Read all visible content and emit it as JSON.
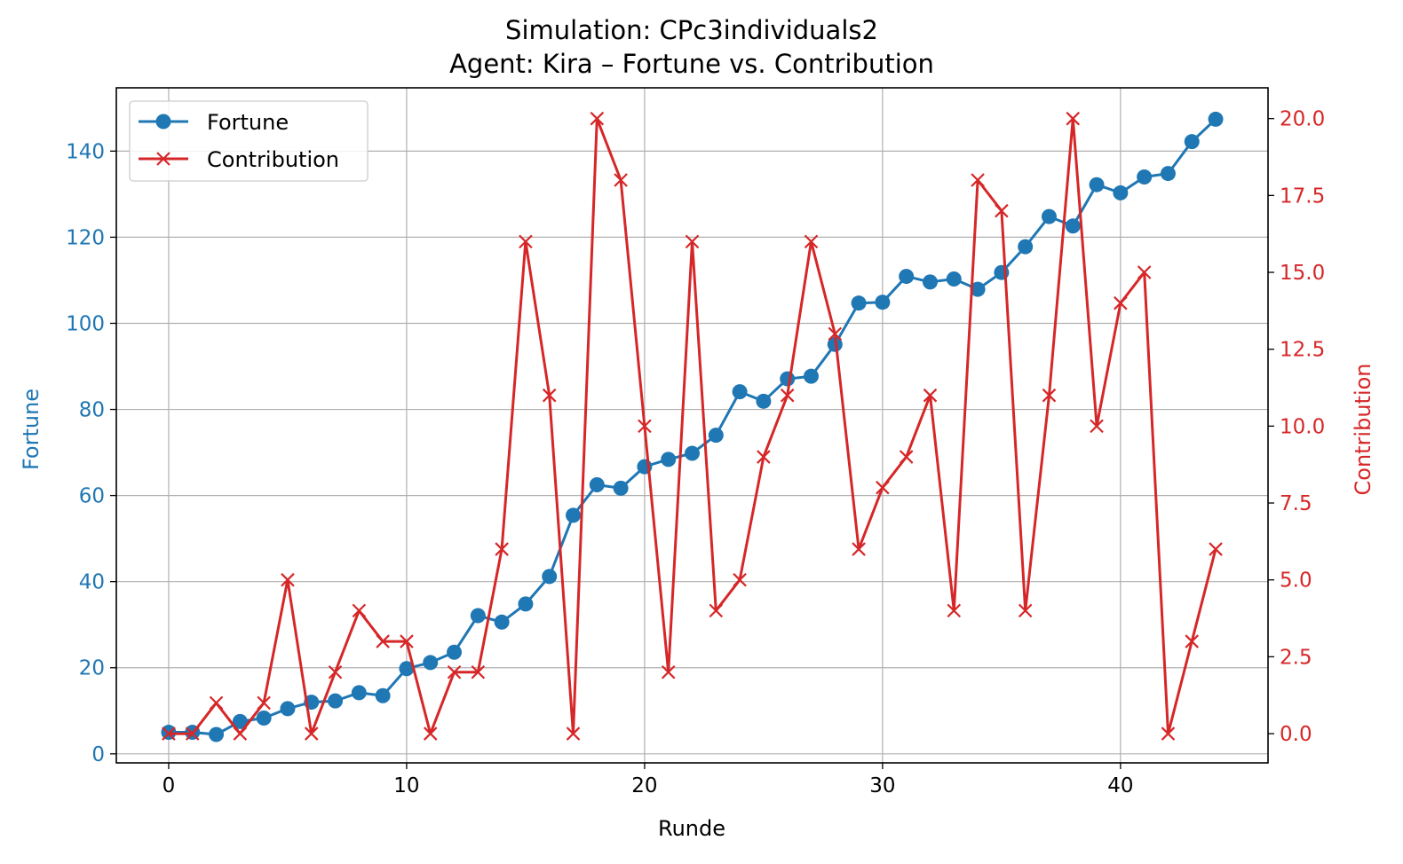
{
  "chart_data": {
    "type": "line",
    "title_line1": "Simulation: CPc3individuals2",
    "title_line2": "Agent: Kira – Fortune vs. Contribution",
    "xlabel": "Runde",
    "ylabel_left": "Fortune",
    "ylabel_right": "Contribution",
    "xlim": [
      -2.2,
      46.2
    ],
    "ylim_left": [
      -2.1,
      154.7
    ],
    "ylim_right": [
      -0.95,
      21.0
    ],
    "x_ticks": [
      "0",
      "10",
      "20",
      "30",
      "40"
    ],
    "y_left_ticks": [
      "0",
      "20",
      "40",
      "60",
      "80",
      "100",
      "120",
      "140"
    ],
    "y_right_ticks": [
      "0.0",
      "2.5",
      "5.0",
      "7.5",
      "10.0",
      "12.5",
      "15.0",
      "17.5",
      "20.0"
    ],
    "grid": true,
    "legend_position": "upper-left",
    "colors": {
      "fortune": "#1f77b4",
      "contribution": "#d62728"
    },
    "x": [
      0,
      1,
      2,
      3,
      4,
      5,
      6,
      7,
      8,
      9,
      10,
      11,
      12,
      13,
      14,
      15,
      16,
      17,
      18,
      19,
      20,
      21,
      22,
      23,
      24,
      25,
      26,
      27,
      28,
      29,
      30,
      31,
      32,
      33,
      34,
      35,
      36,
      37,
      38,
      39,
      40,
      41,
      42,
      43,
      44
    ],
    "series": [
      {
        "name": "Fortune",
        "axis": "left",
        "marker": "circle",
        "values": [
          5,
          5,
          4.5,
          7.5,
          8.3,
          10.5,
          12,
          12.3,
          14.2,
          13.5,
          19.8,
          21.2,
          23.6,
          32.1,
          30.6,
          34.8,
          41.2,
          55.4,
          62.5,
          61.7,
          66.7,
          68.4,
          69.8,
          74,
          84.1,
          81.9,
          87.1,
          87.7,
          95.1,
          104.7,
          104.9,
          110.9,
          109.6,
          110.3,
          107.9,
          111.8,
          117.8,
          124.8,
          122.6,
          132.2,
          130.3,
          134,
          134.8,
          142.2,
          147.4
        ]
      },
      {
        "name": "Contribution",
        "axis": "right",
        "marker": "x",
        "values": [
          0,
          0,
          1,
          0,
          1,
          5,
          0,
          2,
          4,
          3,
          3,
          0,
          2,
          2,
          6,
          16,
          11,
          0,
          20,
          18,
          10,
          2,
          16,
          4,
          5,
          9,
          11,
          16,
          13,
          6,
          8,
          9,
          11,
          4,
          18,
          17,
          4,
          11,
          20,
          10,
          14,
          15,
          0,
          3,
          6
        ]
      }
    ]
  }
}
